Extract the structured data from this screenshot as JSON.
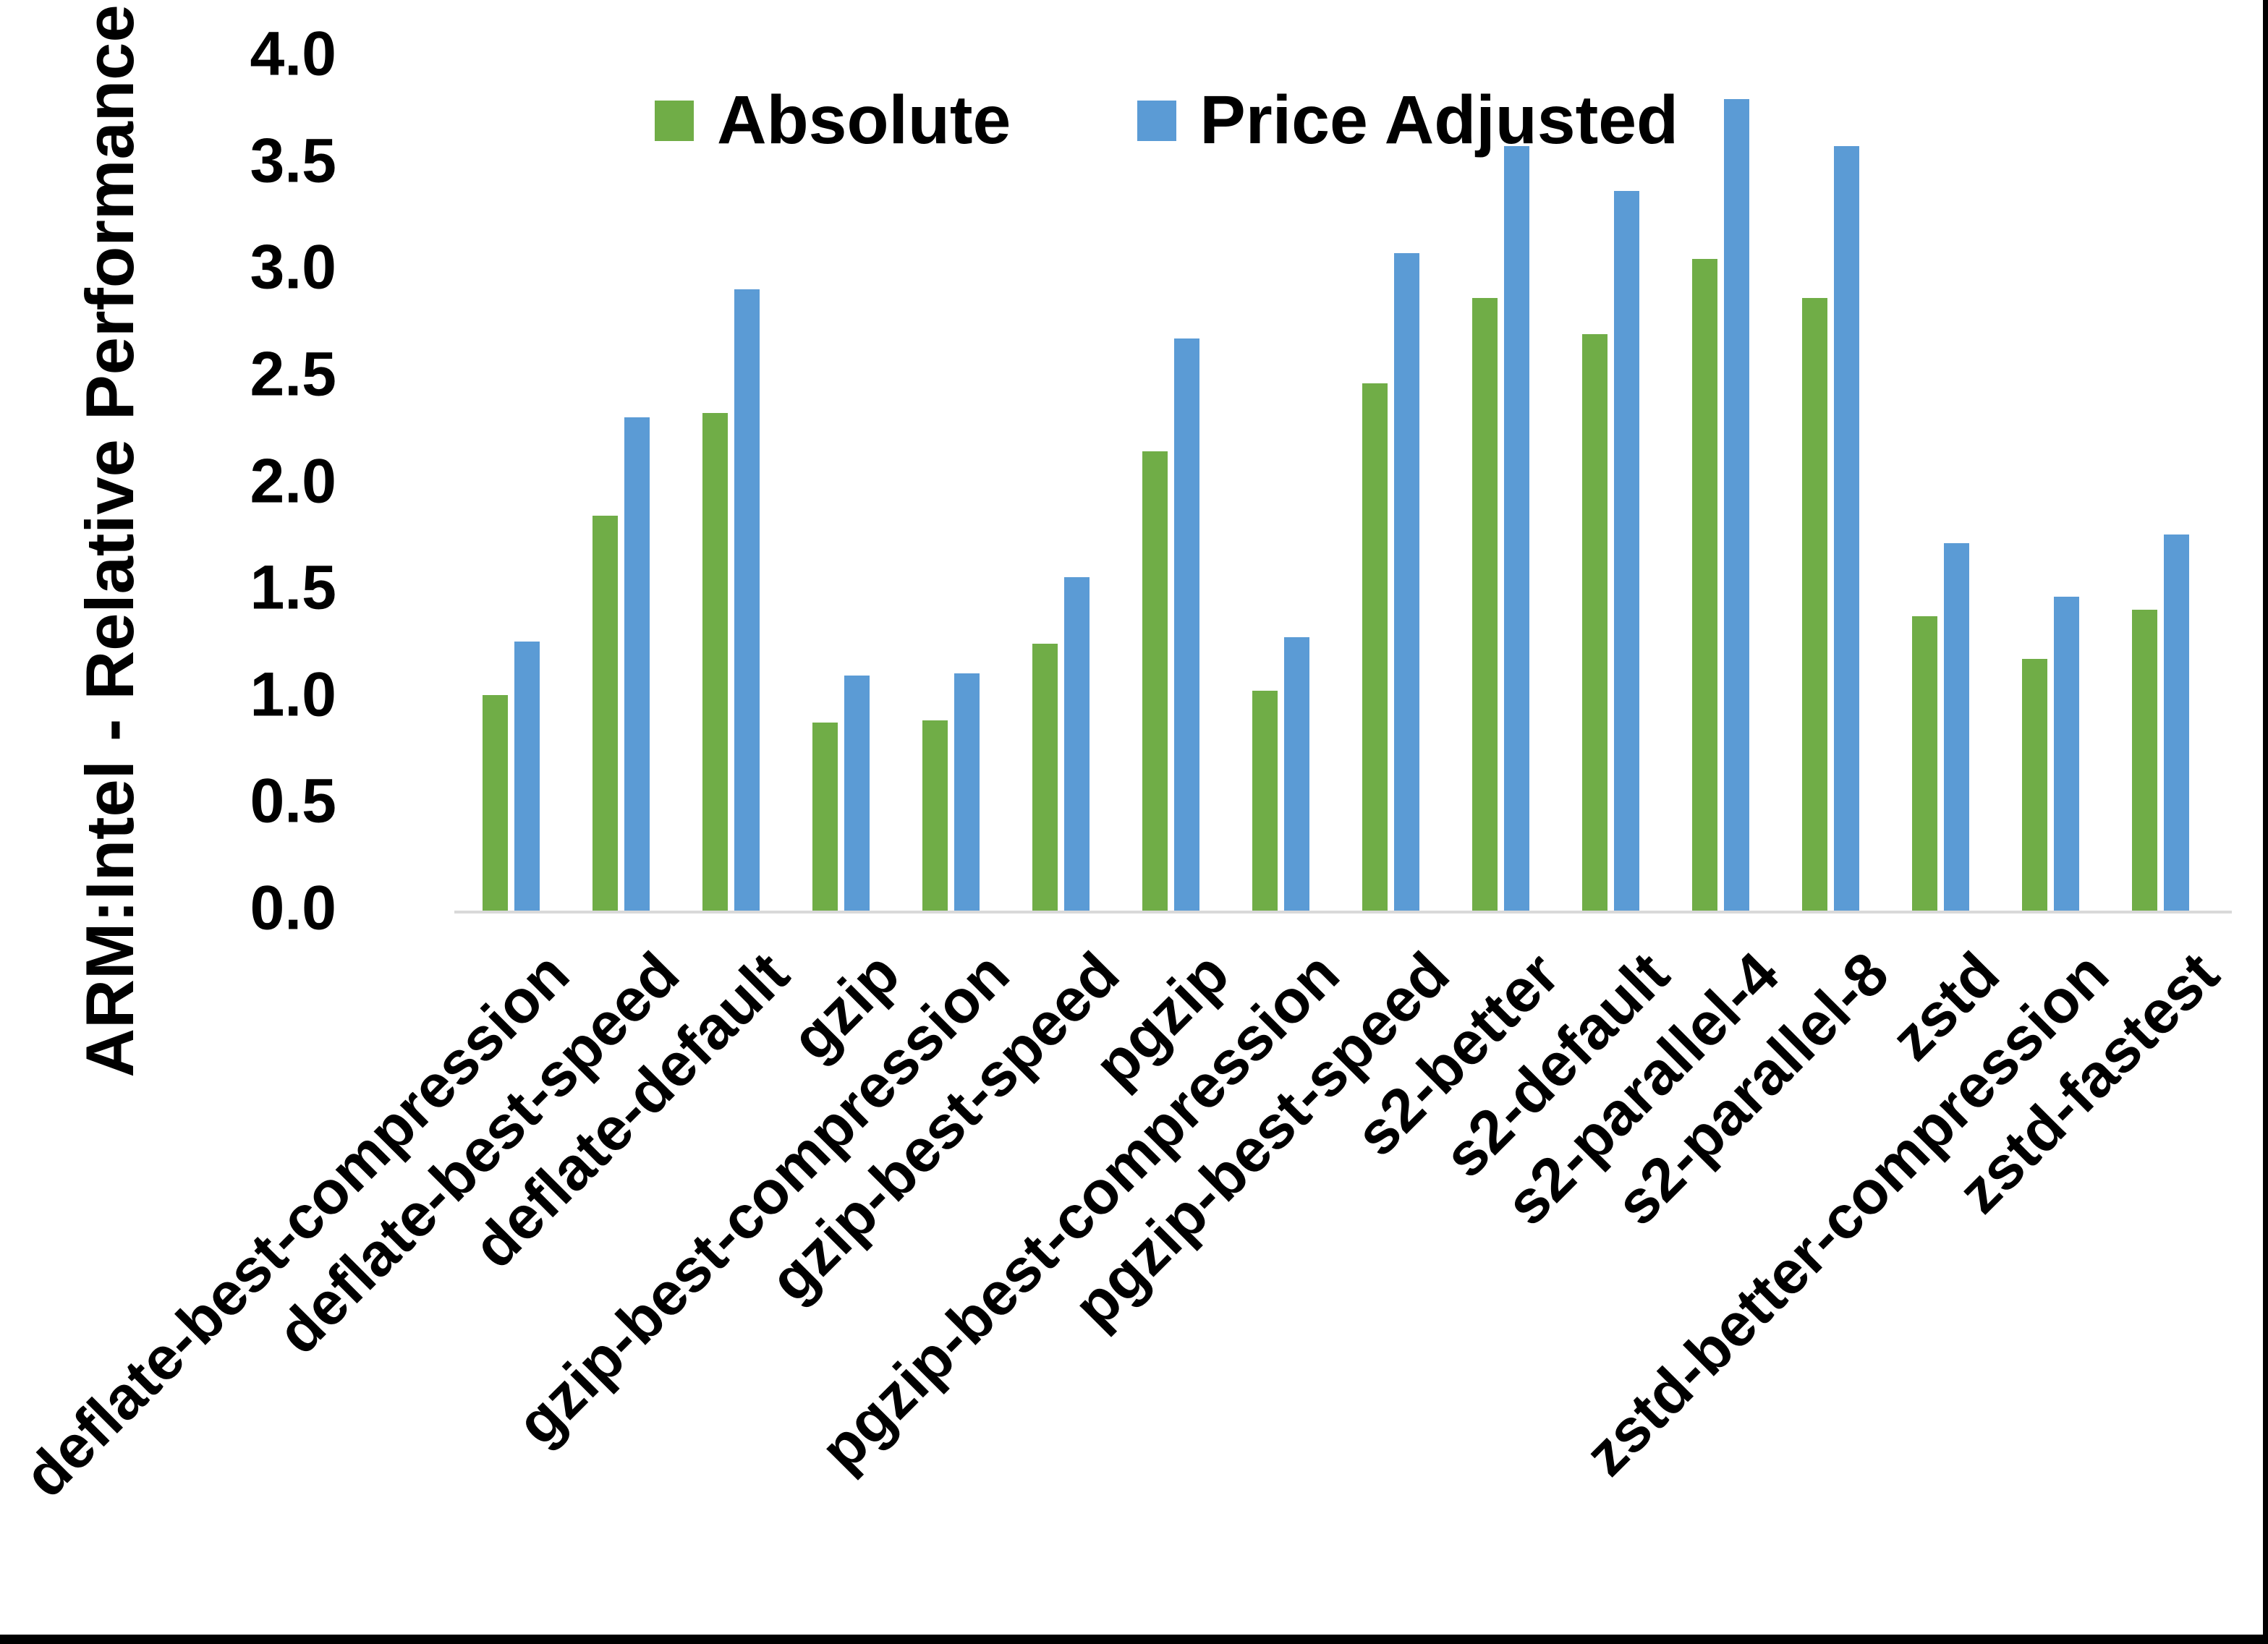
{
  "chart_data": {
    "type": "bar",
    "title": "",
    "ylabel": "ARM:Intel - Relative Performance",
    "xlabel": "",
    "ylim": [
      0.0,
      4.0
    ],
    "ytick_step": 0.5,
    "ytick_labels": [
      "0.0",
      "0.5",
      "1.0",
      "1.5",
      "2.0",
      "2.5",
      "3.0",
      "3.5",
      "4.0"
    ],
    "grid": false,
    "legend_position": "top-center",
    "categories": [
      "deflate-best-compression",
      "deflate-best-speed",
      "deflate-default",
      "gzip",
      "gzip-best-compression",
      "gzip-best-speed",
      "pgzip",
      "pgzip-best-compression",
      "pgzip-best-speed",
      "s2-better",
      "s2-default",
      "s2-parallel-4",
      "s2-parallel-8",
      "zstd",
      "zstd-better-compression",
      "zstd-fastest"
    ],
    "series": [
      {
        "name": "Absolute",
        "color": "#70AD47",
        "values": [
          1.01,
          1.85,
          2.33,
          0.88,
          0.89,
          1.25,
          2.15,
          1.03,
          2.47,
          2.87,
          2.7,
          3.05,
          2.87,
          1.38,
          1.18,
          1.41
        ]
      },
      {
        "name": "Price Adjusted",
        "color": "#5B9BD5",
        "values": [
          1.26,
          2.31,
          2.91,
          1.1,
          1.11,
          1.56,
          2.68,
          1.28,
          3.08,
          3.58,
          3.37,
          3.8,
          3.58,
          1.72,
          1.47,
          1.76
        ]
      }
    ],
    "axis_line_color": "#D9D9D9",
    "text_color": "#000000"
  },
  "frame": {
    "right_edge_color": "#000000",
    "bottom_edge_color": "#000000",
    "background": "#FFFFFF"
  }
}
